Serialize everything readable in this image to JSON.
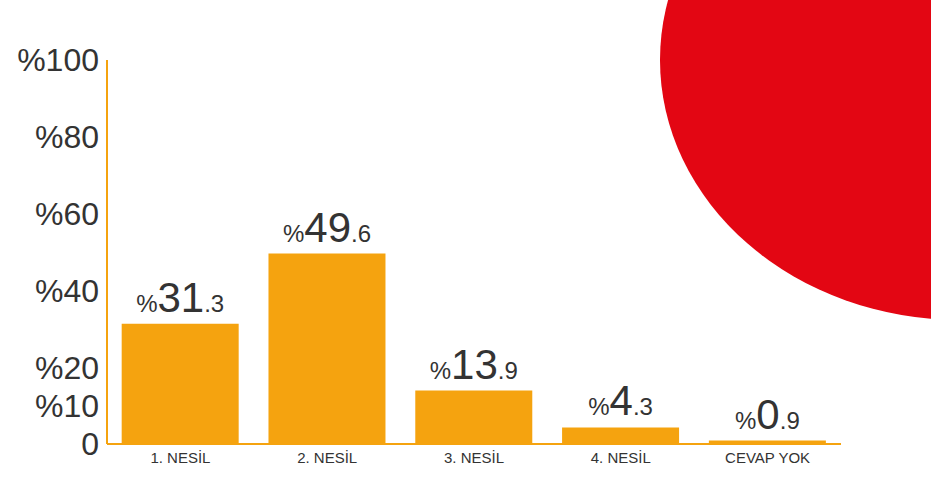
{
  "chart_data": {
    "type": "bar",
    "categories": [
      "1. NESİL",
      "2. NESİL",
      "3. NESİL",
      "4. NESİL",
      "CEVAP YOK"
    ],
    "values": [
      31.3,
      49.6,
      13.9,
      4.3,
      0.9
    ],
    "value_labels": [
      "%31.3",
      "%49.6",
      "%13.9",
      "%4.3",
      "%0.9"
    ],
    "color": "#f5a30f",
    "ylim": [
      0,
      100
    ],
    "yticks": [
      {
        "value": 0,
        "label": "0"
      },
      {
        "value": 10,
        "label": "%10"
      },
      {
        "value": 20,
        "label": "%20"
      },
      {
        "value": 40,
        "label": "%40"
      },
      {
        "value": 60,
        "label": "%60"
      },
      {
        "value": 80,
        "label": "%80"
      },
      {
        "value": 100,
        "label": "%100"
      }
    ],
    "data_labels": true,
    "grid": false
  }
}
